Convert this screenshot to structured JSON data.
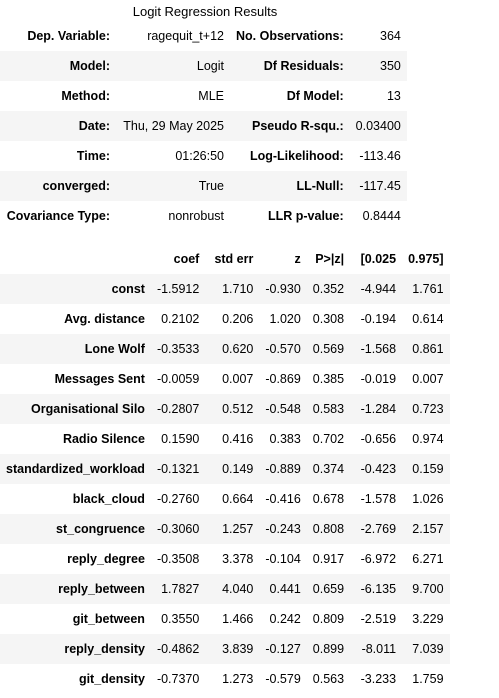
{
  "title": "Logit Regression Results",
  "summary": [
    {
      "label1": "Dep. Variable:",
      "value1": "ragequit_t+12",
      "label2": "No. Observations:",
      "value2": "364"
    },
    {
      "label1": "Model:",
      "value1": "Logit",
      "label2": "Df Residuals:",
      "value2": "350"
    },
    {
      "label1": "Method:",
      "value1": "MLE",
      "label2": "Df Model:",
      "value2": "13"
    },
    {
      "label1": "Date:",
      "value1": "Thu, 29 May 2025",
      "label2": "Pseudo R-squ.:",
      "value2": "0.03400"
    },
    {
      "label1": "Time:",
      "value1": "01:26:50",
      "label2": "Log-Likelihood:",
      "value2": "-113.46"
    },
    {
      "label1": "converged:",
      "value1": "True",
      "label2": "LL-Null:",
      "value2": "-117.45"
    },
    {
      "label1": "Covariance Type:",
      "value1": "nonrobust",
      "label2": "LLR p-value:",
      "value2": "0.8444"
    }
  ],
  "coef_headers": [
    "coef",
    "std err",
    "z",
    "P>|z|",
    "[0.025",
    "0.975]"
  ],
  "coefficients": [
    {
      "name": "const",
      "coef": "-1.5912",
      "std_err": "1.710",
      "z": "-0.930",
      "p": "0.352",
      "lo": "-4.944",
      "hi": "1.761"
    },
    {
      "name": "Avg. distance",
      "coef": "0.2102",
      "std_err": "0.206",
      "z": "1.020",
      "p": "0.308",
      "lo": "-0.194",
      "hi": "0.614"
    },
    {
      "name": "Lone Wolf",
      "coef": "-0.3533",
      "std_err": "0.620",
      "z": "-0.570",
      "p": "0.569",
      "lo": "-1.568",
      "hi": "0.861"
    },
    {
      "name": "Messages Sent",
      "coef": "-0.0059",
      "std_err": "0.007",
      "z": "-0.869",
      "p": "0.385",
      "lo": "-0.019",
      "hi": "0.007"
    },
    {
      "name": "Organisational Silo",
      "coef": "-0.2807",
      "std_err": "0.512",
      "z": "-0.548",
      "p": "0.583",
      "lo": "-1.284",
      "hi": "0.723"
    },
    {
      "name": "Radio Silence",
      "coef": "0.1590",
      "std_err": "0.416",
      "z": "0.383",
      "p": "0.702",
      "lo": "-0.656",
      "hi": "0.974"
    },
    {
      "name": "standardized_workload",
      "coef": "-0.1321",
      "std_err": "0.149",
      "z": "-0.889",
      "p": "0.374",
      "lo": "-0.423",
      "hi": "0.159"
    },
    {
      "name": "black_cloud",
      "coef": "-0.2760",
      "std_err": "0.664",
      "z": "-0.416",
      "p": "0.678",
      "lo": "-1.578",
      "hi": "1.026"
    },
    {
      "name": "st_congruence",
      "coef": "-0.3060",
      "std_err": "1.257",
      "z": "-0.243",
      "p": "0.808",
      "lo": "-2.769",
      "hi": "2.157"
    },
    {
      "name": "reply_degree",
      "coef": "-0.3508",
      "std_err": "3.378",
      "z": "-0.104",
      "p": "0.917",
      "lo": "-6.972",
      "hi": "6.271"
    },
    {
      "name": "reply_between",
      "coef": "1.7827",
      "std_err": "4.040",
      "z": "0.441",
      "p": "0.659",
      "lo": "-6.135",
      "hi": "9.700"
    },
    {
      "name": "git_between",
      "coef": "0.3550",
      "std_err": "1.466",
      "z": "0.242",
      "p": "0.809",
      "lo": "-2.519",
      "hi": "3.229"
    },
    {
      "name": "reply_density",
      "coef": "-0.4862",
      "std_err": "3.839",
      "z": "-0.127",
      "p": "0.899",
      "lo": "-8.011",
      "hi": "7.039"
    },
    {
      "name": "git_density",
      "coef": "-0.7370",
      "std_err": "1.273",
      "z": "-0.579",
      "p": "0.563",
      "lo": "-3.233",
      "hi": "1.759"
    }
  ]
}
